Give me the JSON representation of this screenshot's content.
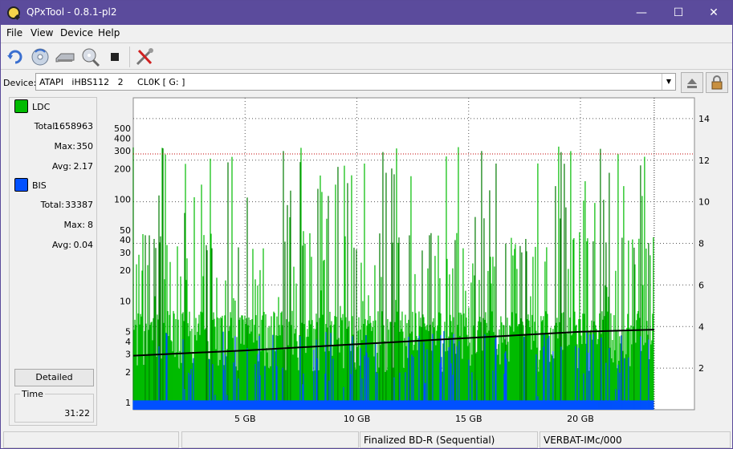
{
  "window": {
    "title": "QPxTool - 0.8.1-pl2"
  },
  "menu": {
    "items": [
      "File",
      "View",
      "Device",
      "Help"
    ]
  },
  "device": {
    "label": "Device:",
    "value": "ATAPI   iHBS112   2     CL0K [ G: ]"
  },
  "legend": {
    "ldc": {
      "name": "LDC",
      "color": "#00bb00",
      "total_label": "Total:",
      "total": "1658963",
      "max_label": "Max:",
      "max": "350",
      "avg_label": "Avg:",
      "avg": "2.17"
    },
    "bis": {
      "name": "BIS",
      "color": "#0050ff",
      "total_label": "Total:",
      "total": "33387",
      "max_label": "Max:",
      "max": "8",
      "avg_label": "Avg:",
      "avg": "0.04"
    }
  },
  "buttons": {
    "detailed": "Detailed"
  },
  "time": {
    "label": "Time",
    "value": "31:22"
  },
  "status": {
    "cell3": "Finalized BD-R (Sequential)",
    "cell4": "VERBAT-IMc/000"
  },
  "chart_data": {
    "type": "bar",
    "x_unit": "GB",
    "xlim": [
      0,
      25.1
    ],
    "disc_end_gb": 23.3,
    "x_ticks": [
      5,
      10,
      15,
      20
    ],
    "x_tick_labels": [
      "5 GB",
      "10 GB",
      "15 GB",
      "20 GB"
    ],
    "left_axis": {
      "scale": "log",
      "ylim": [
        0.85,
        1000
      ],
      "ticks": [
        1,
        2,
        3,
        4,
        5,
        10,
        20,
        30,
        40,
        50,
        100,
        200,
        300,
        400,
        500
      ]
    },
    "right_axis": {
      "ylim": [
        0,
        15
      ],
      "ticks": [
        2,
        4,
        6,
        8,
        10,
        12,
        14
      ]
    },
    "threshold_line": {
      "axis": "left",
      "value": 280,
      "color": "#c00000"
    },
    "grid": true,
    "series": [
      {
        "name": "LDC",
        "axis": "left",
        "color": "#00bb00",
        "max": 350,
        "avg": 2.17
      },
      {
        "name": "BIS",
        "axis": "left",
        "color": "#0050ff",
        "max": 8,
        "avg": 0.04
      },
      {
        "axis": "right",
        "color": "#000000",
        "x": [
          0,
          5,
          10,
          15,
          20,
          23.3
        ],
        "values": [
          2.6,
          2.85,
          3.15,
          3.45,
          3.75,
          3.85
        ]
      }
    ]
  }
}
